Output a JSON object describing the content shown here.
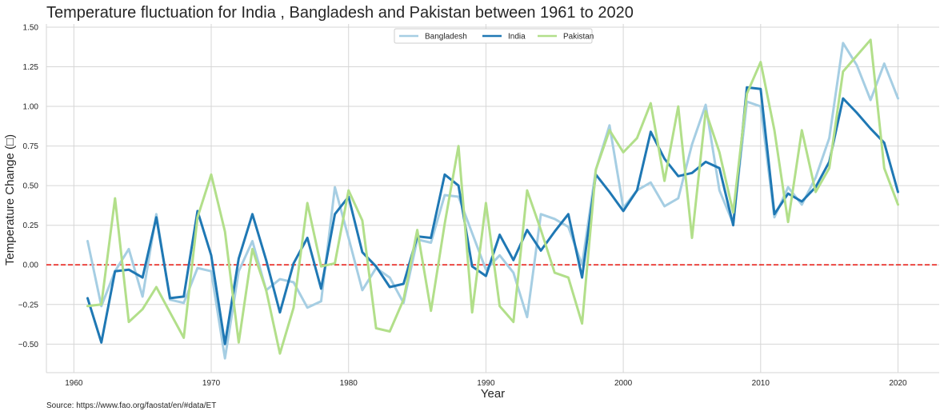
{
  "chart_data": {
    "type": "line",
    "title": "Temperature fluctuation for India , Bangladesh and Pakistan between 1961 to 2020",
    "xlabel": "Year",
    "ylabel": "Temperature Change (□)",
    "source": "Source: https://www.fao.org/faostat/en/#data/ET",
    "xlim": [
      1958,
      2023
    ],
    "ylim": [
      -0.68,
      1.52
    ],
    "xticks": [
      1960,
      1970,
      1980,
      1990,
      2000,
      2010,
      2020
    ],
    "xtick_labels": [
      "1960",
      "1970",
      "1980",
      "1990",
      "2000",
      "2010",
      "2020"
    ],
    "yticks": [
      -0.5,
      -0.25,
      0,
      0.25,
      0.5,
      0.75,
      1.0,
      1.25,
      1.5
    ],
    "ytick_labels": [
      "−0.50",
      "−0.25",
      "0.00",
      "0.25",
      "0.50",
      "0.75",
      "1.00",
      "1.25",
      "1.50"
    ],
    "grid": true,
    "legend_position": "top-center",
    "reference_line": {
      "y": 0,
      "color": "#e8251e",
      "style": "dashed"
    },
    "x": [
      1961,
      1962,
      1963,
      1964,
      1965,
      1966,
      1967,
      1968,
      1969,
      1970,
      1971,
      1972,
      1973,
      1974,
      1975,
      1976,
      1977,
      1978,
      1979,
      1980,
      1981,
      1982,
      1983,
      1984,
      1985,
      1986,
      1987,
      1988,
      1989,
      1990,
      1991,
      1992,
      1993,
      1994,
      1995,
      1996,
      1997,
      1998,
      1999,
      2000,
      2001,
      2002,
      2003,
      2004,
      2005,
      2006,
      2007,
      2008,
      2009,
      2010,
      2011,
      2012,
      2013,
      2014,
      2015,
      2016,
      2017,
      2018,
      2019,
      2020
    ],
    "series": [
      {
        "name": "Bangladesh",
        "color": "#a6cee3",
        "values": [
          0.15,
          -0.26,
          -0.04,
          0.1,
          -0.2,
          0.32,
          -0.22,
          -0.24,
          -0.02,
          -0.04,
          -0.59,
          -0.04,
          0.15,
          -0.16,
          -0.09,
          -0.11,
          -0.27,
          -0.23,
          0.49,
          0.17,
          -0.16,
          -0.02,
          -0.08,
          -0.24,
          0.16,
          0.14,
          0.44,
          0.43,
          0.2,
          -0.03,
          0.06,
          -0.05,
          -0.33,
          0.32,
          0.29,
          0.24,
          0.0,
          0.6,
          0.88,
          0.36,
          0.47,
          0.52,
          0.37,
          0.42,
          0.76,
          1.01,
          0.47,
          0.26,
          1.03,
          1.0,
          0.3,
          0.49,
          0.38,
          0.55,
          0.8,
          1.4,
          1.26,
          1.04,
          1.27,
          1.05
        ]
      },
      {
        "name": "India",
        "color": "#1f78b4",
        "values": [
          -0.21,
          -0.49,
          -0.04,
          -0.03,
          -0.08,
          0.3,
          -0.21,
          -0.2,
          0.34,
          0.06,
          -0.5,
          0.04,
          0.32,
          0.03,
          -0.3,
          0.01,
          0.17,
          -0.15,
          0.32,
          0.43,
          0.08,
          -0.01,
          -0.14,
          -0.12,
          0.18,
          0.17,
          0.57,
          0.5,
          -0.01,
          -0.07,
          0.19,
          0.03,
          0.22,
          0.09,
          0.21,
          0.32,
          -0.08,
          0.57,
          0.46,
          0.34,
          0.47,
          0.84,
          0.67,
          0.56,
          0.58,
          0.65,
          0.61,
          0.25,
          1.12,
          1.11,
          0.32,
          0.45,
          0.4,
          0.49,
          0.65,
          1.05,
          0.96,
          0.86,
          0.77,
          0.46
        ]
      },
      {
        "name": "Pakistan",
        "color": "#b2df8a",
        "values": [
          -0.26,
          -0.25,
          0.42,
          -0.36,
          -0.28,
          -0.14,
          -0.3,
          -0.46,
          0.3,
          0.57,
          0.21,
          -0.49,
          0.1,
          -0.16,
          -0.56,
          -0.27,
          0.39,
          -0.01,
          0.01,
          0.47,
          0.28,
          -0.4,
          -0.42,
          -0.22,
          0.22,
          -0.29,
          0.26,
          0.75,
          -0.3,
          0.39,
          -0.26,
          -0.36,
          0.47,
          0.22,
          -0.05,
          -0.08,
          -0.37,
          0.6,
          0.85,
          0.71,
          0.8,
          1.02,
          0.53,
          1.0,
          0.17,
          0.97,
          0.71,
          0.33,
          1.08,
          1.28,
          0.85,
          0.27,
          0.85,
          0.46,
          0.61,
          1.22,
          1.32,
          1.42,
          0.61,
          0.38
        ]
      }
    ]
  }
}
